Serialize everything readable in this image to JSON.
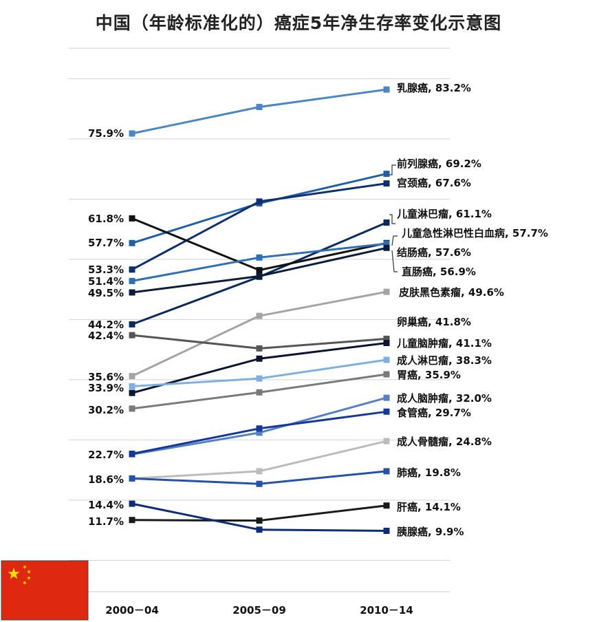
{
  "chart_data": {
    "type": "line",
    "title": "中国（年龄标准化的）癌症5年净生存率变化示意图",
    "categories": [
      "2000－04",
      "2005－09",
      "2010－14"
    ],
    "series": [
      {
        "name": "乳腺癌",
        "values": [
          75.9,
          80.3,
          83.2
        ],
        "color": "#4a86c5",
        "start_label": "75.9%",
        "end_label": "乳腺癌, 83.2%"
      },
      {
        "name": "前列腺癌",
        "values": [
          57.7,
          64.3,
          69.2
        ],
        "color": "#1f5faa",
        "start_label": "57.7%",
        "end_label": "前列腺癌, 69.2%"
      },
      {
        "name": "宫颈癌",
        "values": [
          53.3,
          64.6,
          67.6
        ],
        "color": "#0d2f6e",
        "start_label": "53.3%",
        "end_label": "宫颈癌, 67.6%"
      },
      {
        "name": "儿童淋巴瘤",
        "values": [
          44.2,
          52.1,
          61.1
        ],
        "color": "#0a2a5c",
        "start_label": "44.2%",
        "end_label": "儿童淋巴瘤, 61.1%"
      },
      {
        "name": "儿童急性淋巴性白血病",
        "values": [
          61.8,
          53.2,
          57.7
        ],
        "color": "#111111",
        "start_label": "61.8%",
        "end_label": "儿童急性淋巴性白血病, 57.7%"
      },
      {
        "name": "结肠癌",
        "values": [
          51.4,
          55.3,
          57.6
        ],
        "color": "#2e6fb5",
        "start_label": "51.4%",
        "end_label": "结肠癌, 57.6%"
      },
      {
        "name": "直肠癌",
        "values": [
          49.5,
          52.2,
          56.9
        ],
        "color": "#0c1d3a",
        "start_label": "49.5%",
        "end_label": "直肠癌, 56.9%"
      },
      {
        "name": "皮肤黑色素瘤",
        "values": [
          35.6,
          45.6,
          49.6
        ],
        "color": "#a4a4a4",
        "start_label": "35.6%",
        "end_label": "皮肤黑色素瘤, 49.6%"
      },
      {
        "name": "卵巢癌",
        "values": [
          42.4,
          40.2,
          41.8
        ],
        "color": "#555555",
        "start_label": "42.4%",
        "end_label": "卵巢癌, 41.8%"
      },
      {
        "name": "儿童脑肿瘤",
        "values": [
          32.8,
          38.5,
          41.1
        ],
        "color": "#0b1530",
        "start_label": "",
        "end_label": "儿童脑肿瘤, 41.1%"
      },
      {
        "name": "成人淋巴瘤",
        "values": [
          33.9,
          35.2,
          38.3
        ],
        "color": "#7db0de",
        "start_label": "33.9%",
        "end_label": "成人淋巴瘤, 38.3%"
      },
      {
        "name": "胃癌",
        "values": [
          30.2,
          32.9,
          35.9
        ],
        "color": "#7a7a7a",
        "start_label": "30.2%",
        "end_label": "胃癌, 35.9%"
      },
      {
        "name": "成人脑肿瘤",
        "values": [
          22.6,
          26.2,
          32.0
        ],
        "color": "#5580c4",
        "start_label": "",
        "end_label": "成人脑肿瘤, 32.0%"
      },
      {
        "name": "食管癌",
        "values": [
          22.7,
          26.9,
          29.7
        ],
        "color": "#16379a",
        "start_label": "22.7%",
        "end_label": "食管癌, 29.7%"
      },
      {
        "name": "成人骨髓瘤",
        "values": [
          18.6,
          19.8,
          24.8
        ],
        "color": "#bcbcbc",
        "start_label": "",
        "end_label": "成人骨髓瘤, 24.8%"
      },
      {
        "name": "肺癌",
        "values": [
          18.6,
          17.7,
          19.8
        ],
        "color": "#2452a8",
        "start_label": "18.6%",
        "end_label": "肺癌, 19.8%"
      },
      {
        "name": "肝癌",
        "values": [
          11.7,
          11.6,
          14.1
        ],
        "color": "#1a1a1a",
        "start_label": "11.7%",
        "end_label": "肝癌, 14.1%"
      },
      {
        "name": "胰腺癌",
        "values": [
          14.4,
          10.1,
          9.9
        ],
        "color": "#0e2c78",
        "start_label": "14.4%",
        "end_label": "胰腺癌, 9.9%"
      }
    ],
    "grid": true,
    "gridlines_at": [
      85,
      75,
      65,
      55,
      45,
      35,
      25,
      15,
      5
    ]
  },
  "flag": {
    "name": "china-flag",
    "field_color": "#de2910",
    "star_color": "#ffde00"
  }
}
